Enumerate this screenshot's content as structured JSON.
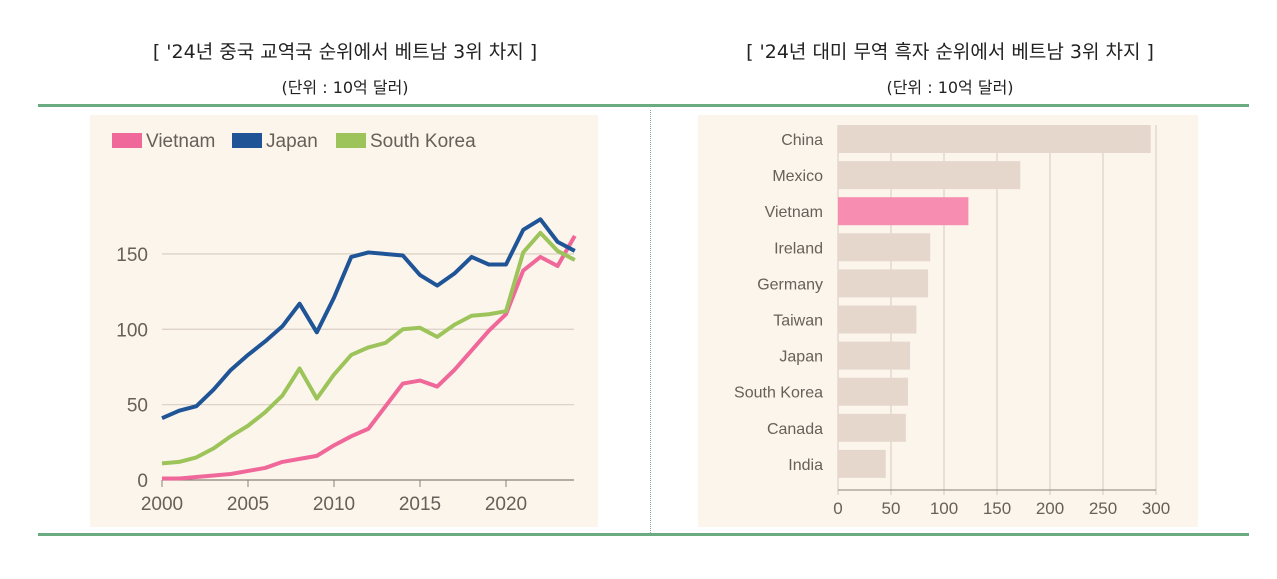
{
  "left": {
    "title": "[ '24년 중국 교역국 순위에서 베트남 3위 차지 ]",
    "unit": "(단위 : 10억 달러)"
  },
  "right": {
    "title": "[ '24년 대미 무역 흑자 순위에서 베트남 3위 차지 ]",
    "unit": "(단위 : 10억 달러)"
  },
  "chart_data": [
    {
      "type": "line",
      "legend_position": "top-left",
      "grid": true,
      "x": [
        2000,
        2001,
        2002,
        2003,
        2004,
        2005,
        2006,
        2007,
        2008,
        2009,
        2010,
        2011,
        2012,
        2013,
        2014,
        2015,
        2016,
        2017,
        2018,
        2019,
        2020,
        2021,
        2022,
        2023,
        2024
      ],
      "xticks": [
        "2000",
        "2005",
        "2010",
        "2015",
        "2020"
      ],
      "yticks": [
        "0",
        "50",
        "100",
        "150"
      ],
      "ylim": [
        0,
        180
      ],
      "series": [
        {
          "name": "Vietnam",
          "color": "#f0689a",
          "values": [
            1,
            1,
            2,
            3,
            4,
            6,
            8,
            12,
            14,
            16,
            23,
            29,
            34,
            49,
            64,
            66,
            62,
            73,
            86,
            99,
            110,
            139,
            148,
            142,
            162
          ]
        },
        {
          "name": "Japan",
          "color": "#1f5597",
          "values": [
            41,
            46,
            49,
            60,
            73,
            83,
            92,
            102,
            117,
            98,
            121,
            148,
            151,
            150,
            149,
            136,
            129,
            137,
            148,
            143,
            143,
            166,
            173,
            158,
            152
          ]
        },
        {
          "name": "South Korea",
          "color": "#9dc45a",
          "values": [
            11,
            12,
            15,
            21,
            29,
            36,
            45,
            56,
            74,
            54,
            70,
            83,
            88,
            91,
            100,
            101,
            95,
            103,
            109,
            110,
            112,
            151,
            164,
            152,
            146
          ]
        }
      ]
    },
    {
      "type": "bar",
      "orientation": "horizontal",
      "grid": true,
      "categories": [
        "China",
        "Mexico",
        "Vietnam",
        "Ireland",
        "Germany",
        "Taiwan",
        "Japan",
        "South Korea",
        "Canada",
        "India"
      ],
      "values": [
        295,
        172,
        123,
        87,
        85,
        74,
        68,
        66,
        64,
        45
      ],
      "highlight": "Vietnam",
      "colors": {
        "bar": "#e6d7cc",
        "highlight": "#f78db0"
      },
      "xticks": [
        "0",
        "50",
        "100",
        "150",
        "200",
        "250",
        "300"
      ],
      "xlim": [
        0,
        300
      ]
    }
  ]
}
